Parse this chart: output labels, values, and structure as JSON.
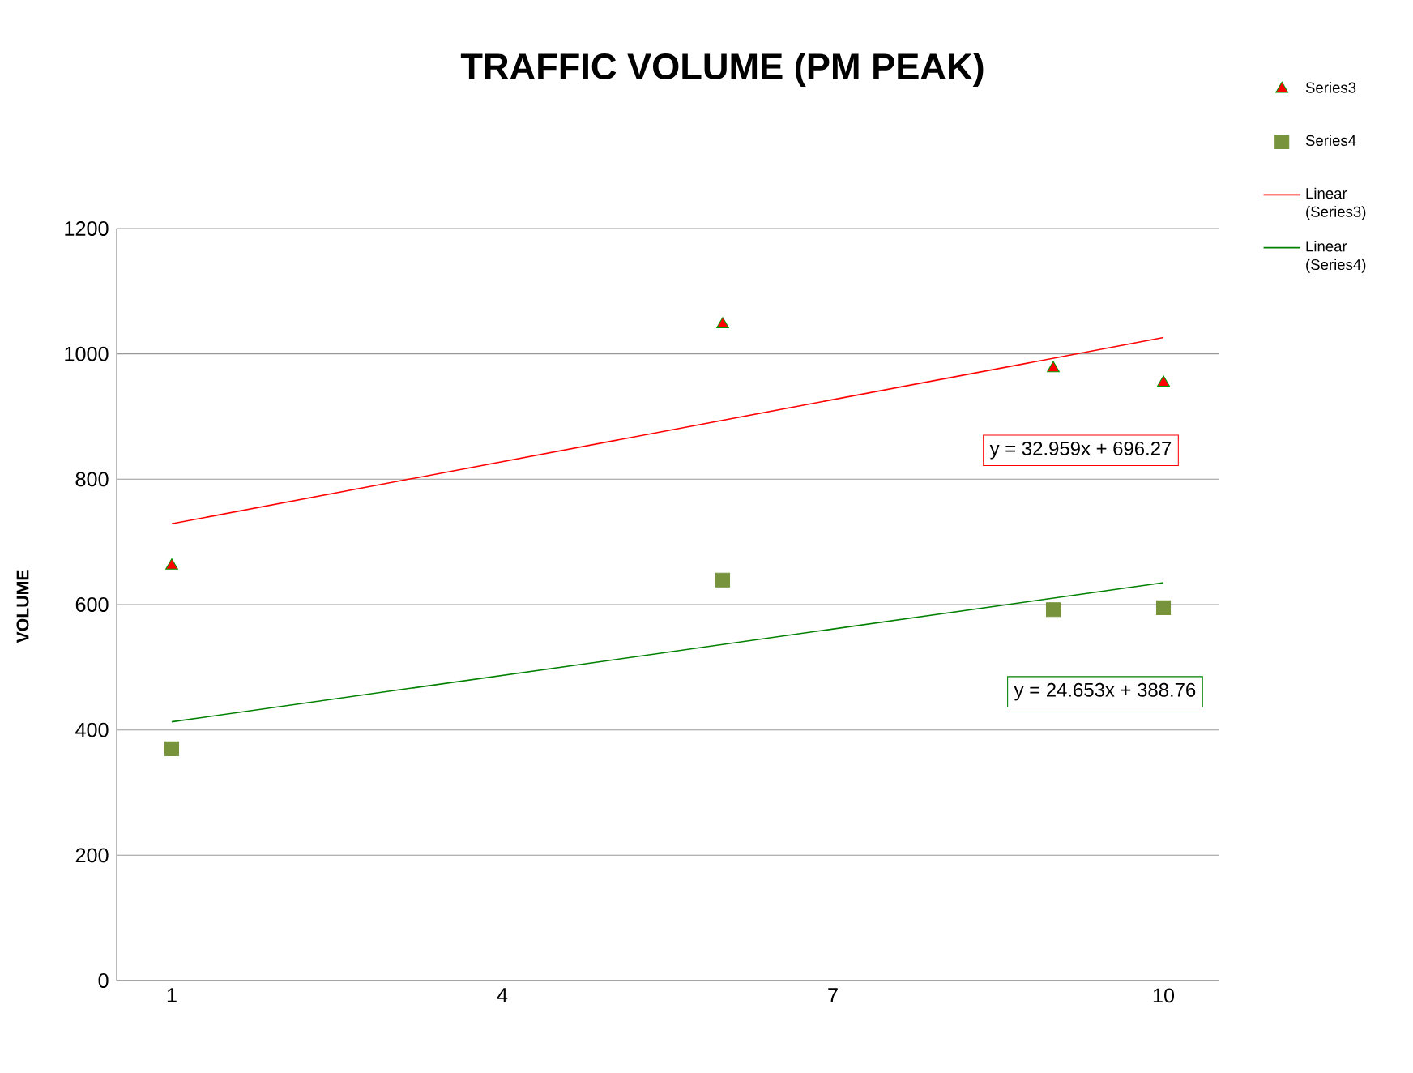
{
  "chart_data": {
    "type": "scatter",
    "title": "TRAFFIC VOLUME (PM PEAK)",
    "ylabel": "VOLUME",
    "xlim": [
      0.5,
      10.5
    ],
    "xticks": [
      1,
      4,
      7,
      10
    ],
    "ylim": [
      0,
      1200
    ],
    "yticks": [
      0,
      200,
      400,
      600,
      800,
      1000,
      1200
    ],
    "grid": "y",
    "legend": "top right",
    "series": [
      {
        "name": "Series3",
        "marker": "triangle",
        "color": "#ff0000",
        "x": [
          1,
          6,
          9,
          10
        ],
        "values": [
          662,
          1047,
          977,
          954
        ]
      },
      {
        "name": "Series4",
        "marker": "square",
        "color": "#77933c",
        "x": [
          1,
          6,
          9,
          10
        ],
        "values": [
          370,
          639,
          592,
          595
        ]
      },
      {
        "name": "Linear (Series3)",
        "type": "line",
        "marker": "none",
        "line_style": "solid",
        "color": "#ff0000",
        "x": [
          1,
          10
        ],
        "values": [
          729,
          1026
        ]
      },
      {
        "name": "Linear (Series4)",
        "type": "line",
        "marker": "none",
        "line_style": "solid",
        "color": "#008000",
        "x": [
          1,
          10
        ],
        "values": [
          413,
          635
        ]
      }
    ],
    "annotations": [
      "y = 32.959x + 696.27",
      "y = 24.653x + 388.76"
    ]
  }
}
